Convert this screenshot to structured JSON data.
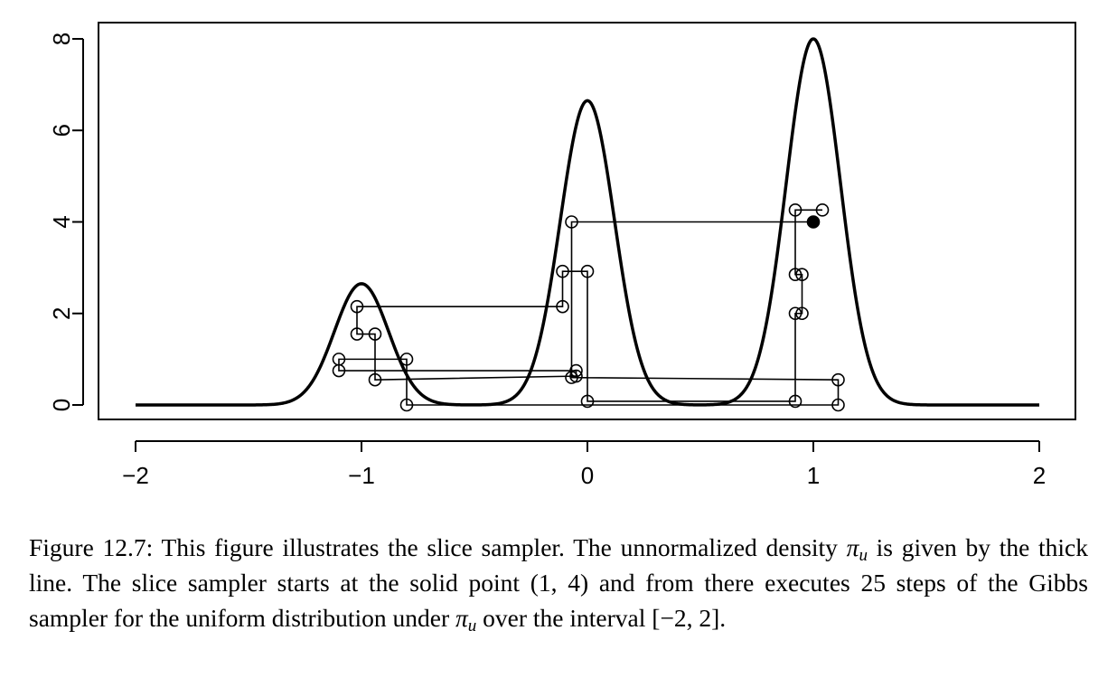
{
  "chart_data": {
    "type": "line",
    "title": "",
    "xlabel": "",
    "ylabel": "",
    "xlim": [
      -2,
      2
    ],
    "ylim": [
      0,
      8
    ],
    "x_ticks": [
      -2,
      -1,
      0,
      1,
      2
    ],
    "x_tick_labels": [
      "−2",
      "−1",
      "0",
      "1",
      "2"
    ],
    "y_ticks": [
      0,
      2,
      4,
      6,
      8
    ],
    "y_tick_labels": [
      "0",
      "2",
      "4",
      "6",
      "8"
    ],
    "grid": false,
    "density_curve": {
      "description_components": [
        {
          "mean": -1.0,
          "height": 2.65,
          "sd": 0.12
        },
        {
          "mean": 0.0,
          "height": 6.65,
          "sd": 0.12
        },
        {
          "mean": 1.0,
          "height": 8.0,
          "sd": 0.12
        }
      ]
    },
    "start_point": {
      "x": 1.0,
      "y": 4.0
    },
    "sampler_path": [
      {
        "x": 1.0,
        "y": 4.0
      },
      {
        "x": -0.07,
        "y": 4.0
      },
      {
        "x": -0.07,
        "y": 0.6
      },
      {
        "x": 1.11,
        "y": 0.55
      },
      {
        "x": 1.11,
        "y": 0.0
      },
      {
        "x": -0.8,
        "y": 0.0
      },
      {
        "x": -0.8,
        "y": 1.0
      },
      {
        "x": -1.1,
        "y": 1.0
      },
      {
        "x": -1.1,
        "y": 0.75
      },
      {
        "x": -0.05,
        "y": 0.75
      },
      {
        "x": -0.05,
        "y": 0.63
      },
      {
        "x": -0.94,
        "y": 0.55
      },
      {
        "x": -0.94,
        "y": 1.55
      },
      {
        "x": -1.02,
        "y": 1.55
      },
      {
        "x": -1.02,
        "y": 2.15
      },
      {
        "x": -0.11,
        "y": 2.15
      },
      {
        "x": -0.11,
        "y": 2.92
      },
      {
        "x": -0.0,
        "y": 2.92
      },
      {
        "x": -0.0,
        "y": 0.08
      },
      {
        "x": 0.92,
        "y": 0.08
      },
      {
        "x": 0.92,
        "y": 2.0
      },
      {
        "x": 0.95,
        "y": 2.0
      },
      {
        "x": 0.95,
        "y": 2.85
      },
      {
        "x": 0.92,
        "y": 2.85
      },
      {
        "x": 0.92,
        "y": 4.26
      },
      {
        "x": 1.04,
        "y": 4.26
      }
    ]
  },
  "caption": {
    "figure_label": "Figure 12.7:",
    "text_1": "This figure illustrates the slice sampler. The unnormalized density",
    "symbol_pi": "π",
    "symbol_sub_u": "u",
    "text_2": "is given by the thick line. The slice sampler starts at the solid point (1, 4) and from there executes 25 steps of the Gibbs sampler for the uniform distribution under",
    "symbol_pi_2": "π",
    "symbol_sub_u_2": "u",
    "text_3": "over the interval [−2, 2]."
  }
}
